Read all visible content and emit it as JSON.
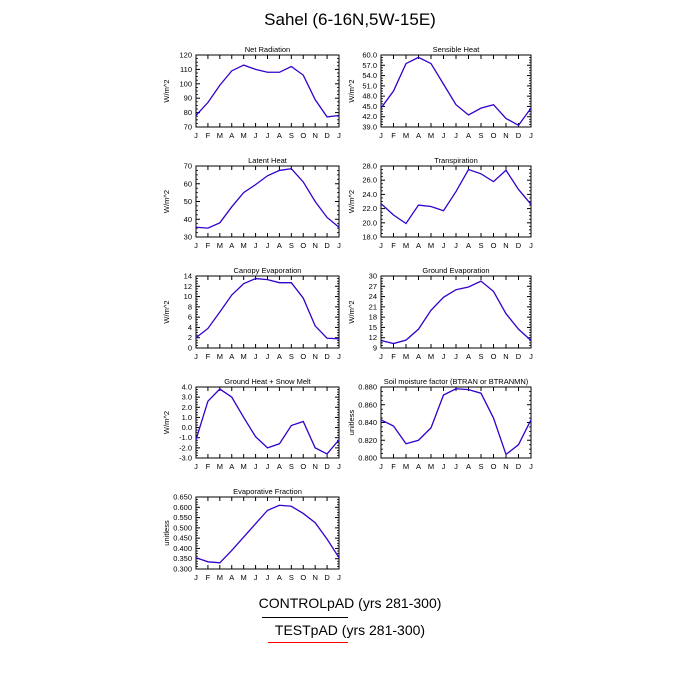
{
  "figure": {
    "title": "Sahel (6-16N,5W-15E)",
    "legend": [
      {
        "label": "CONTROLpAD (yrs 281-300)",
        "color": "#000000"
      },
      {
        "label": "TESTpAD (yrs 281-300)",
        "color": "#ff0000"
      }
    ],
    "line_color": "#3300cc"
  },
  "chart_data": [
    {
      "type": "line",
      "title": "Net Radiation",
      "ylabel": "W/m^2",
      "x": [
        "J",
        "F",
        "M",
        "A",
        "M",
        "J",
        "J",
        "A",
        "S",
        "O",
        "N",
        "D",
        "J"
      ],
      "ylim": [
        70,
        120
      ],
      "yticks": [
        "70",
        "80",
        "90",
        "100",
        "110",
        "120"
      ],
      "values": [
        78,
        87,
        99,
        109,
        113,
        110,
        108,
        108,
        112,
        106,
        89,
        77,
        78
      ]
    },
    {
      "type": "line",
      "title": "Sensible Heat",
      "ylabel": "W/m^2",
      "x": [
        "J",
        "F",
        "M",
        "A",
        "M",
        "J",
        "J",
        "A",
        "S",
        "O",
        "N",
        "D",
        "J"
      ],
      "ylim": [
        39,
        60
      ],
      "yticks": [
        "39.0",
        "42.0",
        "45.0",
        "48.0",
        "51.0",
        "54.0",
        "57.0",
        "60.0"
      ],
      "values": [
        44.5,
        49.5,
        57.5,
        59.3,
        57.5,
        51.5,
        45.5,
        42.5,
        44.5,
        45.5,
        41.5,
        39.5,
        44.5
      ]
    },
    {
      "type": "line",
      "title": "Latent Heat",
      "ylabel": "W/m^2",
      "x": [
        "J",
        "F",
        "M",
        "A",
        "M",
        "J",
        "J",
        "A",
        "S",
        "O",
        "N",
        "D",
        "J"
      ],
      "ylim": [
        30,
        70
      ],
      "yticks": [
        "30",
        "40",
        "50",
        "60",
        "70"
      ],
      "values": [
        35.5,
        35,
        38,
        47,
        55,
        59.5,
        64.5,
        67.5,
        68.5,
        61,
        50,
        41,
        35.5
      ]
    },
    {
      "type": "line",
      "title": "Transpiration",
      "ylabel": "W/m^2",
      "x": [
        "J",
        "F",
        "M",
        "A",
        "M",
        "J",
        "J",
        "A",
        "S",
        "O",
        "N",
        "D",
        "J"
      ],
      "ylim": [
        18,
        28
      ],
      "yticks": [
        "18.0",
        "20.0",
        "22.0",
        "24.0",
        "26.0",
        "28.0"
      ],
      "values": [
        22.7,
        21.1,
        19.9,
        22.5,
        22.3,
        21.7,
        24.4,
        27.5,
        26.9,
        25.8,
        27.4,
        24.7,
        22.6
      ]
    },
    {
      "type": "line",
      "title": "Canopy Evaporation",
      "ylabel": "W/m^2",
      "x": [
        "J",
        "F",
        "M",
        "A",
        "M",
        "J",
        "J",
        "A",
        "S",
        "O",
        "N",
        "D",
        "J"
      ],
      "ylim": [
        0,
        14
      ],
      "yticks": [
        "0",
        "2",
        "4",
        "6",
        "8",
        "10",
        "12",
        "14"
      ],
      "values": [
        2,
        3.8,
        7,
        10.3,
        12.5,
        13.5,
        13.3,
        12.7,
        12.7,
        9.7,
        4.3,
        1.9,
        1.8
      ]
    },
    {
      "type": "line",
      "title": "Ground Evaporation",
      "ylabel": "W/m^2",
      "x": [
        "J",
        "F",
        "M",
        "A",
        "M",
        "J",
        "J",
        "A",
        "S",
        "O",
        "N",
        "D",
        "J"
      ],
      "ylim": [
        9,
        30
      ],
      "yticks": [
        "9",
        "12",
        "15",
        "18",
        "21",
        "24",
        "27",
        "30"
      ],
      "values": [
        11.2,
        10.3,
        11.3,
        14.5,
        20,
        23.8,
        26,
        26.8,
        28.5,
        25.5,
        19,
        14.5,
        11.2
      ]
    },
    {
      "type": "line",
      "title": "Ground Heat + Snow Melt",
      "ylabel": "W/m^2",
      "x": [
        "J",
        "F",
        "M",
        "A",
        "M",
        "J",
        "J",
        "A",
        "S",
        "O",
        "N",
        "D",
        "J"
      ],
      "ylim": [
        -3,
        4
      ],
      "yticks": [
        "-3.0",
        "-2.0",
        "-1.0",
        "0.0",
        "1.0",
        "2.0",
        "3.0",
        "4.0"
      ],
      "values": [
        -1.2,
        2.6,
        3.8,
        3.0,
        1.0,
        -0.9,
        -2.0,
        -1.6,
        0.2,
        0.6,
        -2.0,
        -2.6,
        -1.2
      ]
    },
    {
      "type": "line",
      "title": "Soil moisture factor (BTRAN or BTRANMN)",
      "ylabel": "unitless",
      "x": [
        "J",
        "F",
        "M",
        "A",
        "M",
        "J",
        "J",
        "A",
        "S",
        "O",
        "N",
        "D",
        "J"
      ],
      "ylim": [
        0.8,
        0.88
      ],
      "yticks": [
        "0.800",
        "0.820",
        "0.840",
        "0.860",
        "0.880"
      ],
      "values": [
        0.843,
        0.836,
        0.816,
        0.82,
        0.834,
        0.871,
        0.878,
        0.877,
        0.873,
        0.845,
        0.804,
        0.815,
        0.843
      ]
    },
    {
      "type": "line",
      "title": "Evaporative Fraction",
      "ylabel": "unitless",
      "x": [
        "J",
        "F",
        "M",
        "A",
        "M",
        "J",
        "J",
        "A",
        "S",
        "O",
        "N",
        "D",
        "J"
      ],
      "ylim": [
        0.3,
        0.65
      ],
      "yticks": [
        "0.300",
        "0.350",
        "0.400",
        "0.450",
        "0.500",
        "0.550",
        "0.600",
        "0.650"
      ],
      "values": [
        0.355,
        0.335,
        0.33,
        0.39,
        0.455,
        0.52,
        0.585,
        0.61,
        0.605,
        0.57,
        0.525,
        0.445,
        0.355
      ]
    }
  ]
}
